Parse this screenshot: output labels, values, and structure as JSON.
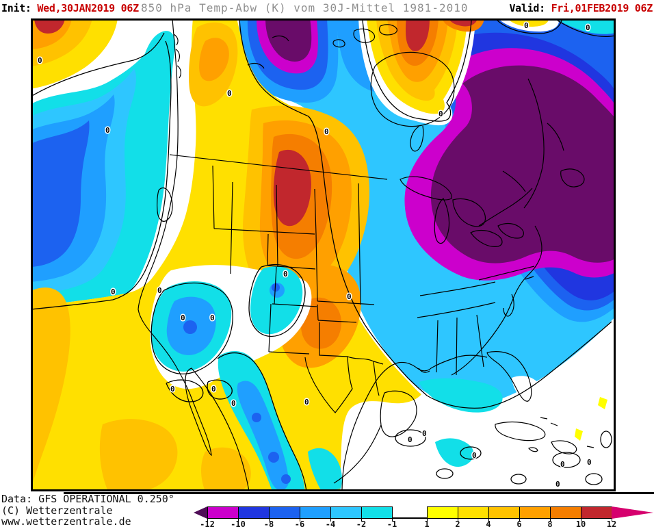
{
  "header": {
    "init_label": "Init:",
    "init_value": " Wed,30JAN2019 06Z",
    "title": "850 hPa Temp-Abw (K) vom 30J-Mittel 1981-2010",
    "valid_label": "Valid:",
    "valid_value": " Fri,01FEB2019 06Z",
    "accent_color": "#C80000",
    "title_color": "#8f8f8f"
  },
  "footer": {
    "line1": "Data: GFS OPERATIONAL 0.250°",
    "line2": "(C) Wetterzentrale",
    "line3": "www.wetterzentrale.de"
  },
  "map": {
    "contour_label": "0",
    "palette": {
      "below_-12": "#690C69",
      "-12_-10": "#CC00CC",
      "-10_-8": "#2036E0",
      "-8_-6": "#1C62F0",
      "-6_-4": "#1F9FFF",
      "-4_-2": "#2EC6FF",
      "-2_-1": "#12DFE8",
      "1_2": "#FFFF00",
      "2_4": "#FFE000",
      "4_6": "#FFC200",
      "6_8": "#FFA000",
      "8_10": "#F57E00",
      "10_12": "#C1272D",
      "above_12": "#D6006E"
    }
  },
  "colorbar": {
    "unit": "K",
    "tick_labels": [
      "-12",
      "-10",
      "-8",
      "-6",
      "-4",
      "-2",
      "-1",
      "1",
      "2",
      "4",
      "6",
      "8",
      "10",
      "12"
    ],
    "segment_colors": [
      "#CC00CC",
      "#2036E0",
      "#1C62F0",
      "#1F9FFF",
      "#2EC6FF",
      "#12DFE8",
      "#FFFF00",
      "#FFE000",
      "#FFC200",
      "#FFA000",
      "#F57E00",
      "#C1272D"
    ],
    "left_arrow_color": "#4F0D57",
    "right_arrow_color": "#D6006E"
  }
}
